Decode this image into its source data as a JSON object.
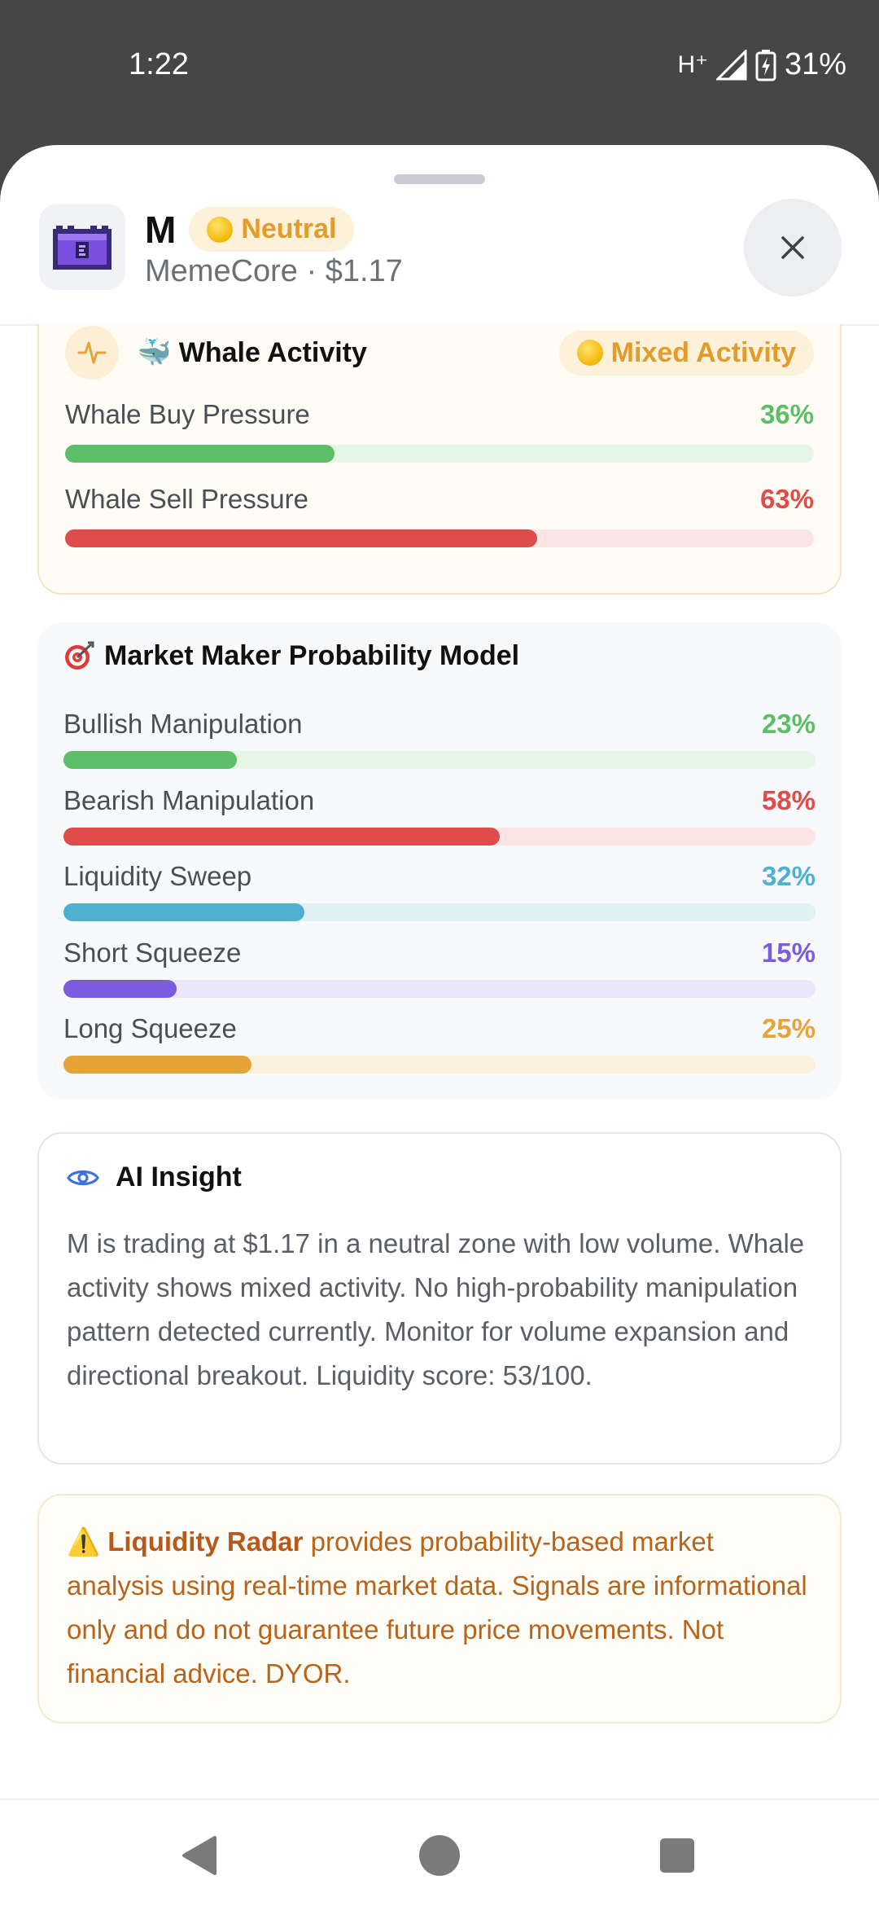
{
  "status_bar": {
    "time": "1:22",
    "network": "H⁺",
    "battery": "31%"
  },
  "token": {
    "symbol": "M",
    "sentiment": "Neutral",
    "subtitle": "MemeCore · $1.17"
  },
  "whale_activity": {
    "title": "🐳 Whale Activity",
    "badge": "Mixed Activity",
    "metrics": [
      {
        "label": "Whale Buy Pressure",
        "value_text": "36%",
        "percent": 36,
        "color": "#5cbf68",
        "track": "#e5f5e6"
      },
      {
        "label": "Whale Sell Pressure",
        "value_text": "63%",
        "percent": 63,
        "color": "#de4d4a",
        "track": "#fbe5e4"
      }
    ]
  },
  "market_maker": {
    "title": "Market Maker Probability Model",
    "metrics": [
      {
        "label": "Bullish Manipulation",
        "value_text": "23%",
        "percent": 23,
        "color": "#5cbf68",
        "track": "#e5f5e6"
      },
      {
        "label": "Bearish Manipulation",
        "value_text": "58%",
        "percent": 58,
        "color": "#de4d4a",
        "track": "#fbe5e4"
      },
      {
        "label": "Liquidity Sweep",
        "value_text": "32%",
        "percent": 32,
        "color": "#4fb0d0",
        "track": "#dff1f7"
      },
      {
        "label": "Short Squeeze",
        "value_text": "15%",
        "percent": 15,
        "color": "#7b5be0",
        "track": "#ebe6fa"
      },
      {
        "label": "Long Squeeze",
        "value_text": "25%",
        "percent": 25,
        "color": "#e6a33a",
        "track": "#fbf0dd"
      }
    ]
  },
  "ai_insight": {
    "title": "AI Insight",
    "text": "M is trading at $1.17 in a neutral zone with low volume. Whale activity shows mixed activity. No high-probability manipulation pattern detected currently. Monitor for volume expansion and directional breakout. Liquidity score: 53/100."
  },
  "disclaimer": {
    "icon": "⚠️",
    "brand": "Liquidity Radar",
    "text": " provides probability-based market analysis using real-time market data. Signals are informational only and do not guarantee future price movements. Not financial advice. DYOR."
  },
  "colors": {
    "accent_yellow": "#e39b2b",
    "disclaimer_text": "#b8641a"
  }
}
